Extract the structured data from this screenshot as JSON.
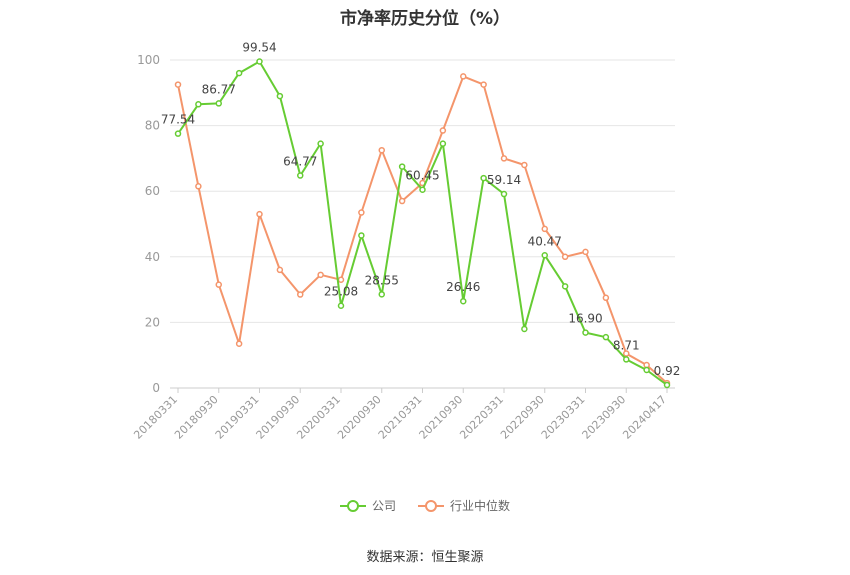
{
  "title": "市净率历史分位（%）",
  "source": "数据来源：恒生聚源",
  "colors": {
    "company": "#66cc33",
    "industry": "#f4956b",
    "grid": "#e6e6e6",
    "axis": "#999999"
  },
  "chart_data": {
    "type": "line",
    "title": "市净率历史分位（%）",
    "ylim": [
      0,
      100
    ],
    "yticks": [
      0,
      20,
      40,
      60,
      80,
      100
    ],
    "grid": true,
    "legend_position": "bottom",
    "xtick_labels": [
      "20180331",
      "20180930",
      "20190331",
      "20190930",
      "20200331",
      "20200930",
      "20210331",
      "20210930",
      "20220331",
      "20220930",
      "20230331",
      "20230930",
      "20240417"
    ],
    "x": [
      "20180331",
      "20180630",
      "20180930",
      "20181231",
      "20190331",
      "20190630",
      "20190930",
      "20191231",
      "20200331",
      "20200630",
      "20200930",
      "20201231",
      "20210331",
      "20210630",
      "20210930",
      "20211231",
      "20220331",
      "20220630",
      "20220930",
      "20221231",
      "20230331",
      "20230630",
      "20230930",
      "20231231",
      "20240417"
    ],
    "series": [
      {
        "name": "公司",
        "color": "#66cc33",
        "values": [
          77.54,
          86.5,
          86.77,
          96.0,
          99.54,
          89.0,
          64.77,
          74.5,
          25.08,
          46.5,
          28.55,
          67.5,
          60.45,
          74.5,
          26.46,
          64.0,
          59.14,
          18.0,
          40.47,
          31.0,
          16.9,
          15.5,
          8.71,
          5.5,
          0.92
        ],
        "data_labels": [
          {
            "index": 0,
            "text": "77.54"
          },
          {
            "index": 2,
            "text": "86.77"
          },
          {
            "index": 4,
            "text": "99.54"
          },
          {
            "index": 6,
            "text": "64.77"
          },
          {
            "index": 8,
            "text": "25.08"
          },
          {
            "index": 10,
            "text": "28.55"
          },
          {
            "index": 12,
            "text": "60.45"
          },
          {
            "index": 14,
            "text": "26.46"
          },
          {
            "index": 16,
            "text": "59.14"
          },
          {
            "index": 18,
            "text": "40.47"
          },
          {
            "index": 20,
            "text": "16.90"
          },
          {
            "index": 22,
            "text": "8.71"
          },
          {
            "index": 24,
            "text": "0.92"
          }
        ]
      },
      {
        "name": "行业中位数",
        "color": "#f4956b",
        "values": [
          92.5,
          61.5,
          31.5,
          13.5,
          53.0,
          36.0,
          28.5,
          34.5,
          33.0,
          53.5,
          72.5,
          57.0,
          62.5,
          78.5,
          95.0,
          92.5,
          70.0,
          68.0,
          48.5,
          40.0,
          41.5,
          27.5,
          10.5,
          7.0,
          1.5
        ]
      }
    ]
  }
}
